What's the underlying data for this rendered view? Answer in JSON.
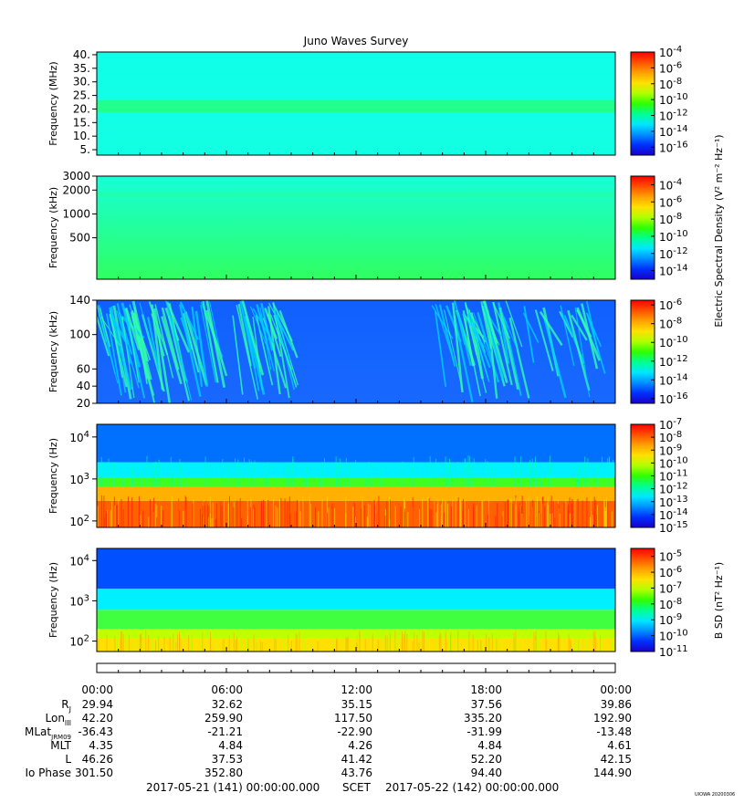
{
  "title": "Juno Waves Survey",
  "stamp": "UIOWA 20200306",
  "colorbar_labels": {
    "esd": "Electric Spectral Density (V² m⁻² Hz⁻¹)",
    "bsd": "B SD (nT² Hz⁻¹)"
  },
  "colormap": [
    "#1a00c8",
    "#0030ff",
    "#0090ff",
    "#00e8ff",
    "#00ff90",
    "#30ff00",
    "#b0ff00",
    "#ffe000",
    "#ffa000",
    "#ff5000",
    "#ff0000"
  ],
  "chart_data": [
    {
      "type": "heatmap",
      "ylabel": "Frequency (MHz)",
      "yticks": [
        5,
        10,
        15,
        20,
        25,
        30,
        35,
        40
      ],
      "ytick_labels": [
        "5.",
        "10.",
        "15.",
        "20.",
        "25.",
        "30.",
        "35.",
        "40."
      ],
      "ylim": [
        3,
        41
      ],
      "bg_colors": [
        "#10ffe8",
        "#12ffe4"
      ],
      "bands": [
        {
          "y": 21,
          "color": "#22ff8c",
          "width": 2.2
        }
      ],
      "colorbar": {
        "ticks": [
          -4,
          -6,
          -8,
          -10,
          -12,
          -14,
          -16
        ],
        "range": [
          -17,
          -4
        ]
      }
    },
    {
      "type": "heatmap",
      "ylabel": "Frequency (kHz)",
      "yticks": [
        500,
        1000,
        2000,
        3000
      ],
      "ytick_labels": [
        "500",
        "1000",
        "2000",
        "3000"
      ],
      "ylim": [
        150,
        3000
      ],
      "bg_colors": [
        "#16ffd8",
        "#30ff60"
      ],
      "bands": [
        {
          "y": 1750,
          "color": "#20ffb0",
          "width": 120
        }
      ],
      "colorbar": {
        "ticks": [
          -4,
          -6,
          -8,
          -10,
          -12,
          -14
        ],
        "range": [
          -15,
          -3
        ]
      }
    },
    {
      "type": "heatmap",
      "ylabel": "Frequency (kHz)",
      "yticks": [
        20,
        40,
        60,
        100,
        140
      ],
      "ytick_labels": [
        "20",
        "40",
        "60",
        "100",
        "140"
      ],
      "ylim": [
        20,
        140
      ],
      "bg_colors": [
        "#1060ff",
        "#1868ff"
      ],
      "colorbar": {
        "ticks": [
          -6,
          -8,
          -10,
          -12,
          -14,
          -16
        ],
        "range": [
          -16.5,
          -5.5
        ]
      }
    },
    {
      "type": "heatmap",
      "ylabel": "Frequency (Hz)",
      "yticks": [
        100,
        1000,
        10000
      ],
      "ytick_labels": [
        "10²",
        "10³",
        "10⁴"
      ],
      "ylim": [
        70,
        20000
      ],
      "layers": [
        {
          "from": 70,
          "to": 300,
          "color": "#ff6000"
        },
        {
          "from": 300,
          "to": 650,
          "color": "#ffb000"
        },
        {
          "from": 650,
          "to": 1100,
          "color": "#40ff20"
        },
        {
          "from": 1100,
          "to": 2500,
          "color": "#00f0ff"
        },
        {
          "from": 2500,
          "to": 20000,
          "color": "#0070ff"
        }
      ],
      "colorbar": {
        "ticks": [
          -7,
          -8,
          -9,
          -10,
          -11,
          -12,
          -13,
          -14,
          -15
        ],
        "range": [
          -15,
          -7
        ]
      }
    },
    {
      "type": "heatmap",
      "ylabel": "Frequency (Hz)",
      "yticks": [
        100,
        1000,
        10000
      ],
      "ytick_labels": [
        "10²",
        "10³",
        "10⁴"
      ],
      "ylim": [
        55,
        20000
      ],
      "layers": [
        {
          "from": 55,
          "to": 120,
          "color": "#ffe000"
        },
        {
          "from": 120,
          "to": 200,
          "color": "#c0ff00"
        },
        {
          "from": 200,
          "to": 600,
          "color": "#40ff40"
        },
        {
          "from": 600,
          "to": 2000,
          "color": "#00f0ff"
        },
        {
          "from": 2000,
          "to": 20000,
          "color": "#0050ff"
        }
      ],
      "colorbar": {
        "ticks": [
          -5,
          -6,
          -7,
          -8,
          -9,
          -10,
          -11
        ],
        "range": [
          -11,
          -4.5
        ]
      }
    }
  ],
  "ephemeris": {
    "times": [
      "00:00",
      "06:00",
      "12:00",
      "18:00",
      "00:00"
    ],
    "rows": [
      {
        "label": "Rj",
        "values": [
          "29.94",
          "32.62",
          "35.15",
          "37.56",
          "39.86"
        ]
      },
      {
        "label": "LonIII",
        "values": [
          "42.20",
          "259.90",
          "117.50",
          "335.20",
          "192.90"
        ]
      },
      {
        "label": "MLatJRM09",
        "values": [
          "-36.43",
          "-21.21",
          "-22.90",
          "-31.99",
          "-13.48"
        ]
      },
      {
        "label": "MLT",
        "values": [
          "4.35",
          "4.84",
          "4.26",
          "4.84",
          "4.61"
        ]
      },
      {
        "label": "L",
        "values": [
          "46.26",
          "37.53",
          "41.42",
          "52.20",
          "42.15"
        ]
      },
      {
        "label": "Io Phase",
        "values": [
          "301.50",
          "352.80",
          "43.76",
          "94.40",
          "144.90"
        ]
      }
    ],
    "start": "2017-05-21 (141) 00:00:00.000",
    "axis_name": "SCET",
    "end": "2017-05-22 (142) 00:00:00.000"
  }
}
